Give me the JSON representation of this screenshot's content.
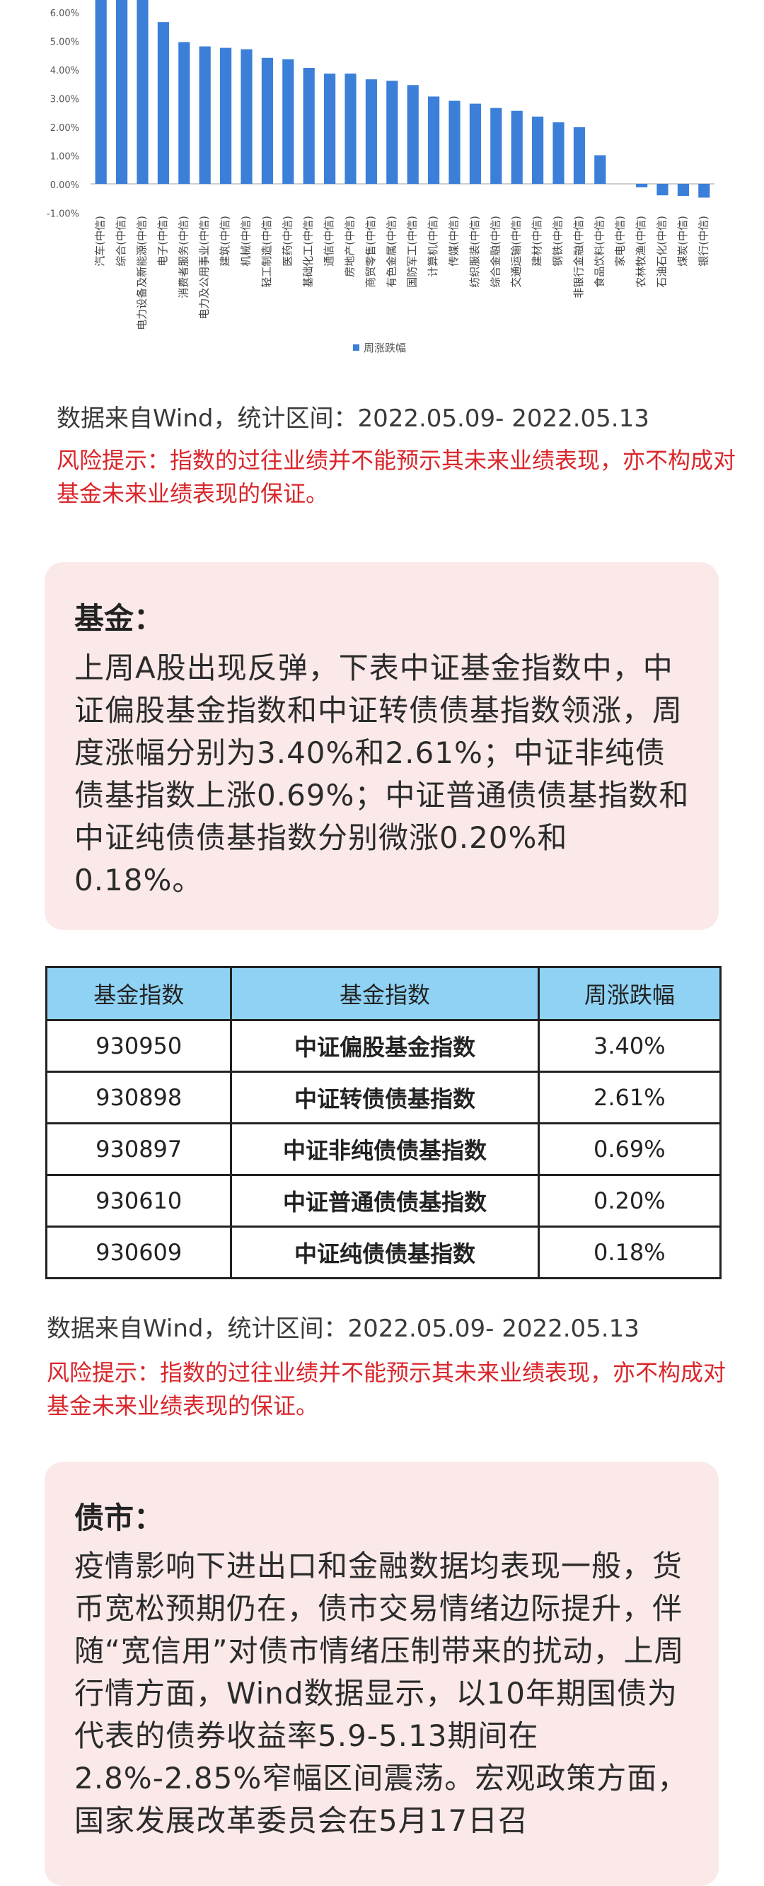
{
  "chart_data": {
    "type": "bar",
    "categories": [
      "汽车(中信)",
      "综合(中信)",
      "电力设备及新能源(中信)",
      "电子(中信)",
      "消费者服务(中信)",
      "电力及公用事业(中信)",
      "建筑(中信)",
      "机械(中信)",
      "轻工制造(中信)",
      "医药(中信)",
      "基础化工(中信)",
      "通信(中信)",
      "房地产(中信)",
      "商贸零售(中信)",
      "有色金属(中信)",
      "国防军工(中信)",
      "计算机(中信)",
      "传媒(中信)",
      "纺织服装(中信)",
      "综合金融(中信)",
      "交通运输(中信)",
      "建材(中信)",
      "钢铁(中信)",
      "非银行金融(中信)",
      "食品饮料(中信)",
      "家电(中信)",
      "农林牧渔(中信)",
      "石油石化(中信)",
      "煤炭(中信)",
      "银行(中信)"
    ],
    "series": [
      {
        "name": "周涨跌幅",
        "values": [
          6.55,
          6.5,
          6.45,
          5.65,
          4.95,
          4.8,
          4.75,
          4.7,
          4.4,
          4.35,
          4.05,
          3.85,
          3.85,
          3.65,
          3.6,
          3.45,
          3.05,
          2.9,
          2.8,
          2.65,
          2.55,
          2.35,
          2.15,
          1.98,
          1.0,
          0.0,
          -0.12,
          -0.4,
          -0.42,
          -0.48
        ]
      }
    ],
    "yticks": [
      "-1.00%",
      "0.00%",
      "1.00%",
      "2.00%",
      "3.00%",
      "4.00%",
      "5.00%",
      "6.00%"
    ],
    "ylim": [
      -1.0,
      6.3
    ],
    "legend_position": "bottom",
    "bar_color": "#3b7fd9"
  },
  "chart_note": "数据来自Wind，统计区间：2022.05.09- 2022.05.13",
  "risk_note_1": "风险提示：指数的过往业绩并不能预示其未来业绩表现，亦不构成对基金未来业绩表现的保证。",
  "fund_card": {
    "title": "基金：",
    "body": "上周A股出现反弹，下表中证基金指数中，中证偏股基金指数和中证转债债基指数领涨，周度涨幅分别为3.40%和2.61%；中证非纯债债基指数上涨0.69%；中证普通债债基指数和中证纯债债基指数分别微涨0.20%和0.18%。"
  },
  "fund_table": {
    "headers": [
      "基金指数",
      "基金指数",
      "周涨跌幅"
    ],
    "rows": [
      [
        "930950",
        "中证偏股基金指数",
        "3.40%"
      ],
      [
        "930898",
        "中证转债债基指数",
        "2.61%"
      ],
      [
        "930897",
        "中证非纯债债基指数",
        "0.69%"
      ],
      [
        "930610",
        "中证普通债债基指数",
        "0.20%"
      ],
      [
        "930609",
        "中证纯债债基指数",
        "0.18%"
      ]
    ],
    "header_color": "#8fd2f3"
  },
  "table_note": "数据来自Wind，统计区间：2022.05.09- 2022.05.13",
  "risk_note_2": "风险提示：指数的过往业绩并不能预示其未来业绩表现，亦不构成对基金未来业绩表现的保证。",
  "bond_card": {
    "title": "债市：",
    "body": "疫情影响下进出口和金融数据均表现一般，货币宽松预期仍在，债市交易情绪边际提升，伴随“宽信用”对债市情绪压制带来的扰动，上周行情方面，Wind数据显示，以10年期国债为代表的债券收益率5.9-5.13期间在2.8%-2.85%窄幅区间震荡。宏观政策方面，国家发展改革委员会在5月17日召"
  },
  "colors": {
    "card_bg": "#fbe9e9",
    "risk": "#d9262b"
  }
}
